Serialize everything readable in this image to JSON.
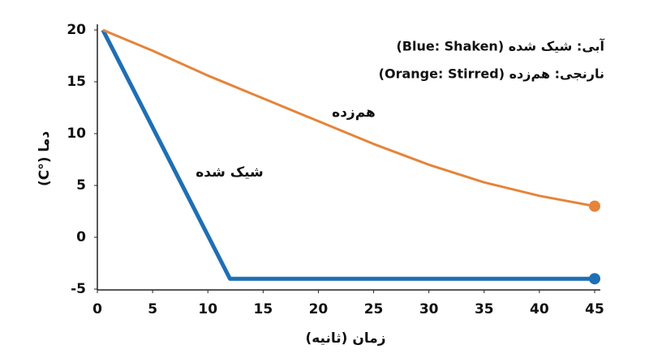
{
  "chart_data": {
    "type": "line",
    "xlabel": "زمان (ثانیه)",
    "ylabel": "دما (°C)",
    "notes": [
      "آبی: شیک شده (Blue: Shaken)",
      "نارنجی: هم‌زده (Orange: Stirred)"
    ],
    "annotations": [
      "هم‌زده",
      "شیک شده"
    ],
    "xlim": [
      0,
      45
    ],
    "xticks": [
      0,
      5,
      10,
      15,
      20,
      25,
      30,
      35,
      40,
      45
    ],
    "ylim": [
      -5,
      20
    ],
    "yticks": [
      -5,
      0,
      5,
      10,
      15,
      20
    ],
    "end_markers": true,
    "series": [
      {
        "name": "شیک شده",
        "color": "#1f6fb4",
        "x": [
          0.5,
          12,
          45
        ],
        "values": [
          20,
          -4,
          -4
        ]
      },
      {
        "name": "هم‌زده",
        "color": "#e5843a",
        "x": [
          0.5,
          5,
          10,
          15,
          20,
          25,
          30,
          35,
          40,
          45
        ],
        "values": [
          20,
          18,
          15.6,
          13.4,
          11.2,
          9,
          7,
          5.3,
          4,
          3
        ]
      }
    ]
  }
}
